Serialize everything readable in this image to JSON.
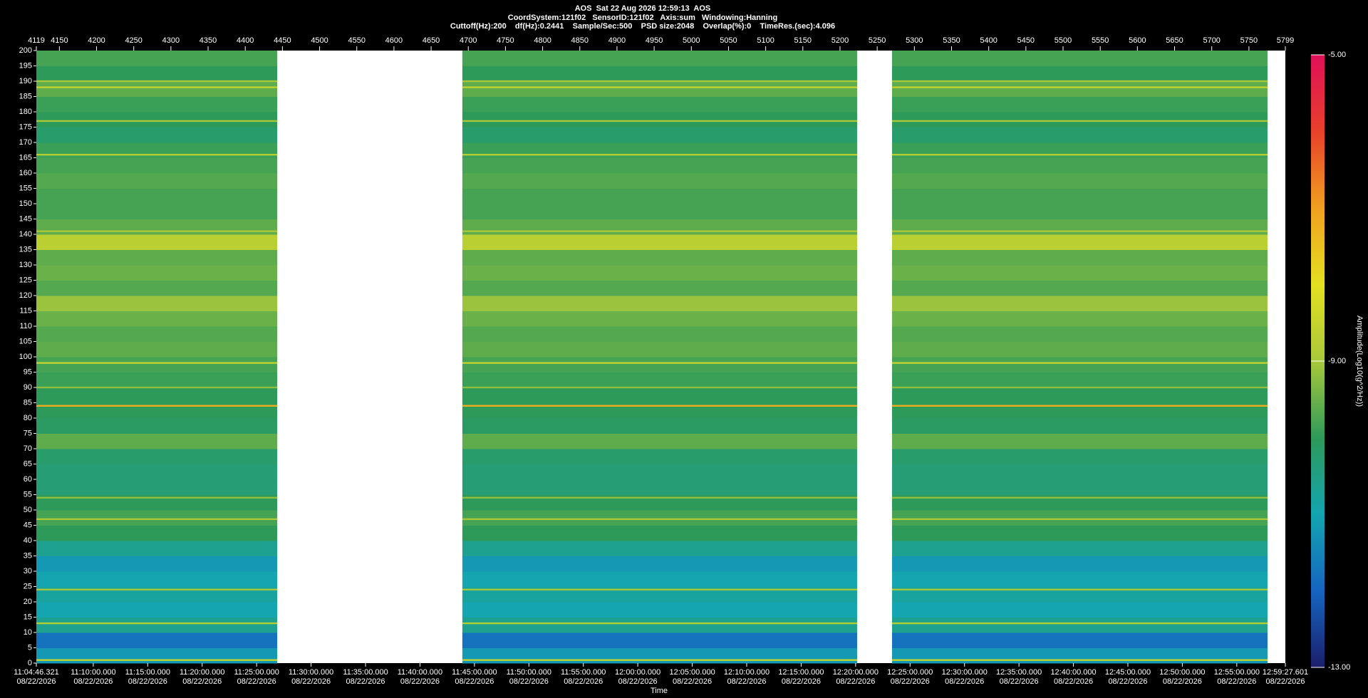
{
  "chart_data": {
    "type": "spectrogram",
    "title": "AOS  Sat 22 Aug 2026 12:59:13  AOS",
    "subtitle": "CoordSystem:121f02   SensorID:121f02   Axis:sum   Windowing:Hanning",
    "info": "Cuttoff(Hz):200    df(Hz):0.2441    Sample/Sec:500    PSD size:2048    Overlap(%):0    TimeRes.(sec):4.096",
    "x_label": "Time",
    "colorbar_label": "Amplitude(Log10(g^2/Hz))",
    "xlim": [
      4119,
      5799
    ],
    "xticks": [
      4119,
      4150,
      4200,
      4250,
      4300,
      4350,
      4400,
      4450,
      4500,
      4550,
      4600,
      4650,
      4700,
      4750,
      4800,
      4850,
      4900,
      4950,
      5000,
      5050,
      5100,
      5150,
      5200,
      5250,
      5300,
      5350,
      5400,
      5450,
      5500,
      5550,
      5600,
      5650,
      5700,
      5750,
      5799
    ],
    "x2lim": [
      39886.321,
      46767.601
    ],
    "x2ticks": [
      {
        "value": 39886.321,
        "label": "11:04:46.321",
        "date": "08/22/2026"
      },
      {
        "value": 40200,
        "label": "11:10:00.000",
        "date": "08/22/2026"
      },
      {
        "value": 40500,
        "label": "11:15:00.000",
        "date": "08/22/2026"
      },
      {
        "value": 40800,
        "label": "11:20:00.000",
        "date": "08/22/2026"
      },
      {
        "value": 41100,
        "label": "11:25:00.000",
        "date": "08/22/2026"
      },
      {
        "value": 41400,
        "label": "11:30:00.000",
        "date": "08/22/2026"
      },
      {
        "value": 41700,
        "label": "11:35:00.000",
        "date": "08/22/2026"
      },
      {
        "value": 42000,
        "label": "11:40:00.000",
        "date": "08/22/2026"
      },
      {
        "value": 42300,
        "label": "11:45:00.000",
        "date": "08/22/2026"
      },
      {
        "value": 42600,
        "label": "11:50:00.000",
        "date": "08/22/2026"
      },
      {
        "value": 42900,
        "label": "11:55:00.000",
        "date": "08/22/2026"
      },
      {
        "value": 43200,
        "label": "12:00:00.000",
        "date": "08/22/2026"
      },
      {
        "value": 43500,
        "label": "12:05:00.000",
        "date": "08/22/2026"
      },
      {
        "value": 43800,
        "label": "12:10:00.000",
        "date": "08/22/2026"
      },
      {
        "value": 44100,
        "label": "12:15:00.000",
        "date": "08/22/2026"
      },
      {
        "value": 44400,
        "label": "12:20:00.000",
        "date": "08/22/2026"
      },
      {
        "value": 44700,
        "label": "12:25:00.000",
        "date": "08/22/2026"
      },
      {
        "value": 45000,
        "label": "12:30:00.000",
        "date": "08/22/2026"
      },
      {
        "value": 45300,
        "label": "12:35:00.000",
        "date": "08/22/2026"
      },
      {
        "value": 45600,
        "label": "12:40:00.000",
        "date": "08/22/2026"
      },
      {
        "value": 45900,
        "label": "12:45:00.000",
        "date": "08/22/2026"
      },
      {
        "value": 46200,
        "label": "12:50:00.000",
        "date": "08/22/2026"
      },
      {
        "value": 46500,
        "label": "12:55:00.000",
        "date": "08/22/2026"
      },
      {
        "value": 46767.601,
        "label": "12:59:27.601",
        "date": "08/22/2026"
      }
    ],
    "ylim": [
      0,
      200
    ],
    "yticks": [
      0,
      5,
      10,
      15,
      20,
      25,
      30,
      35,
      40,
      45,
      50,
      55,
      60,
      65,
      70,
      75,
      80,
      85,
      90,
      95,
      100,
      105,
      110,
      115,
      120,
      125,
      130,
      135,
      140,
      145,
      150,
      155,
      160,
      165,
      170,
      175,
      180,
      185,
      190,
      195,
      200
    ],
    "zlim": [
      -13,
      -5
    ],
    "zticks": [
      {
        "value": -5,
        "label": "-5.00"
      },
      {
        "value": -9,
        "label": "-9.00"
      },
      {
        "value": -13,
        "label": "-13.00"
      }
    ],
    "colorscale": [
      "#1c1f6b",
      "#1565c0",
      "#14a5b0",
      "#2e9a5a",
      "#a8c83a",
      "#e4e020",
      "#f0a020",
      "#e8402a",
      "#e0105a"
    ],
    "segments": [
      [
        4119,
        4443
      ],
      [
        4692,
        5223
      ],
      [
        5270,
        5775
      ]
    ],
    "bands": {
      "bins": [
        0,
        5,
        10,
        15,
        20,
        25,
        30,
        35,
        40,
        45,
        50,
        55,
        60,
        65,
        70,
        75,
        80,
        85,
        90,
        95,
        100,
        105,
        110,
        115,
        120,
        125,
        130,
        135,
        140,
        145,
        150,
        155,
        160,
        165,
        170,
        175,
        180,
        185,
        190,
        195,
        200
      ],
      "values": [
        -11.2,
        -11.8,
        -10.6,
        -11.0,
        -10.8,
        -11.0,
        -11.2,
        -10.6,
        -10.0,
        -9.8,
        -10.0,
        -10.3,
        -10.3,
        -10.2,
        -9.6,
        -10.1,
        -10.0,
        -10.0,
        -9.9,
        -9.8,
        -9.6,
        -9.7,
        -9.5,
        -9.1,
        -9.7,
        -9.5,
        -9.6,
        -8.7,
        -9.6,
        -9.8,
        -9.8,
        -9.7,
        -9.8,
        -9.9,
        -10.2,
        -10.0,
        -9.9,
        -9.6,
        -10.0,
        -9.8
      ]
    },
    "lines": [
      {
        "freq": 1,
        "value": -8.5
      },
      {
        "freq": 13,
        "value": -8.8
      },
      {
        "freq": 24,
        "value": -9
      },
      {
        "freq": 47,
        "value": -9
      },
      {
        "freq": 54,
        "value": -9.2
      },
      {
        "freq": 84,
        "value": -7.2
      },
      {
        "freq": 90,
        "value": -9.2
      },
      {
        "freq": 98,
        "value": -8.6
      },
      {
        "freq": 141,
        "value": -9
      },
      {
        "freq": 166,
        "value": -8.8
      },
      {
        "freq": 177,
        "value": -9
      },
      {
        "freq": 188,
        "value": -8.6
      },
      {
        "freq": 190,
        "value": -9
      }
    ]
  }
}
